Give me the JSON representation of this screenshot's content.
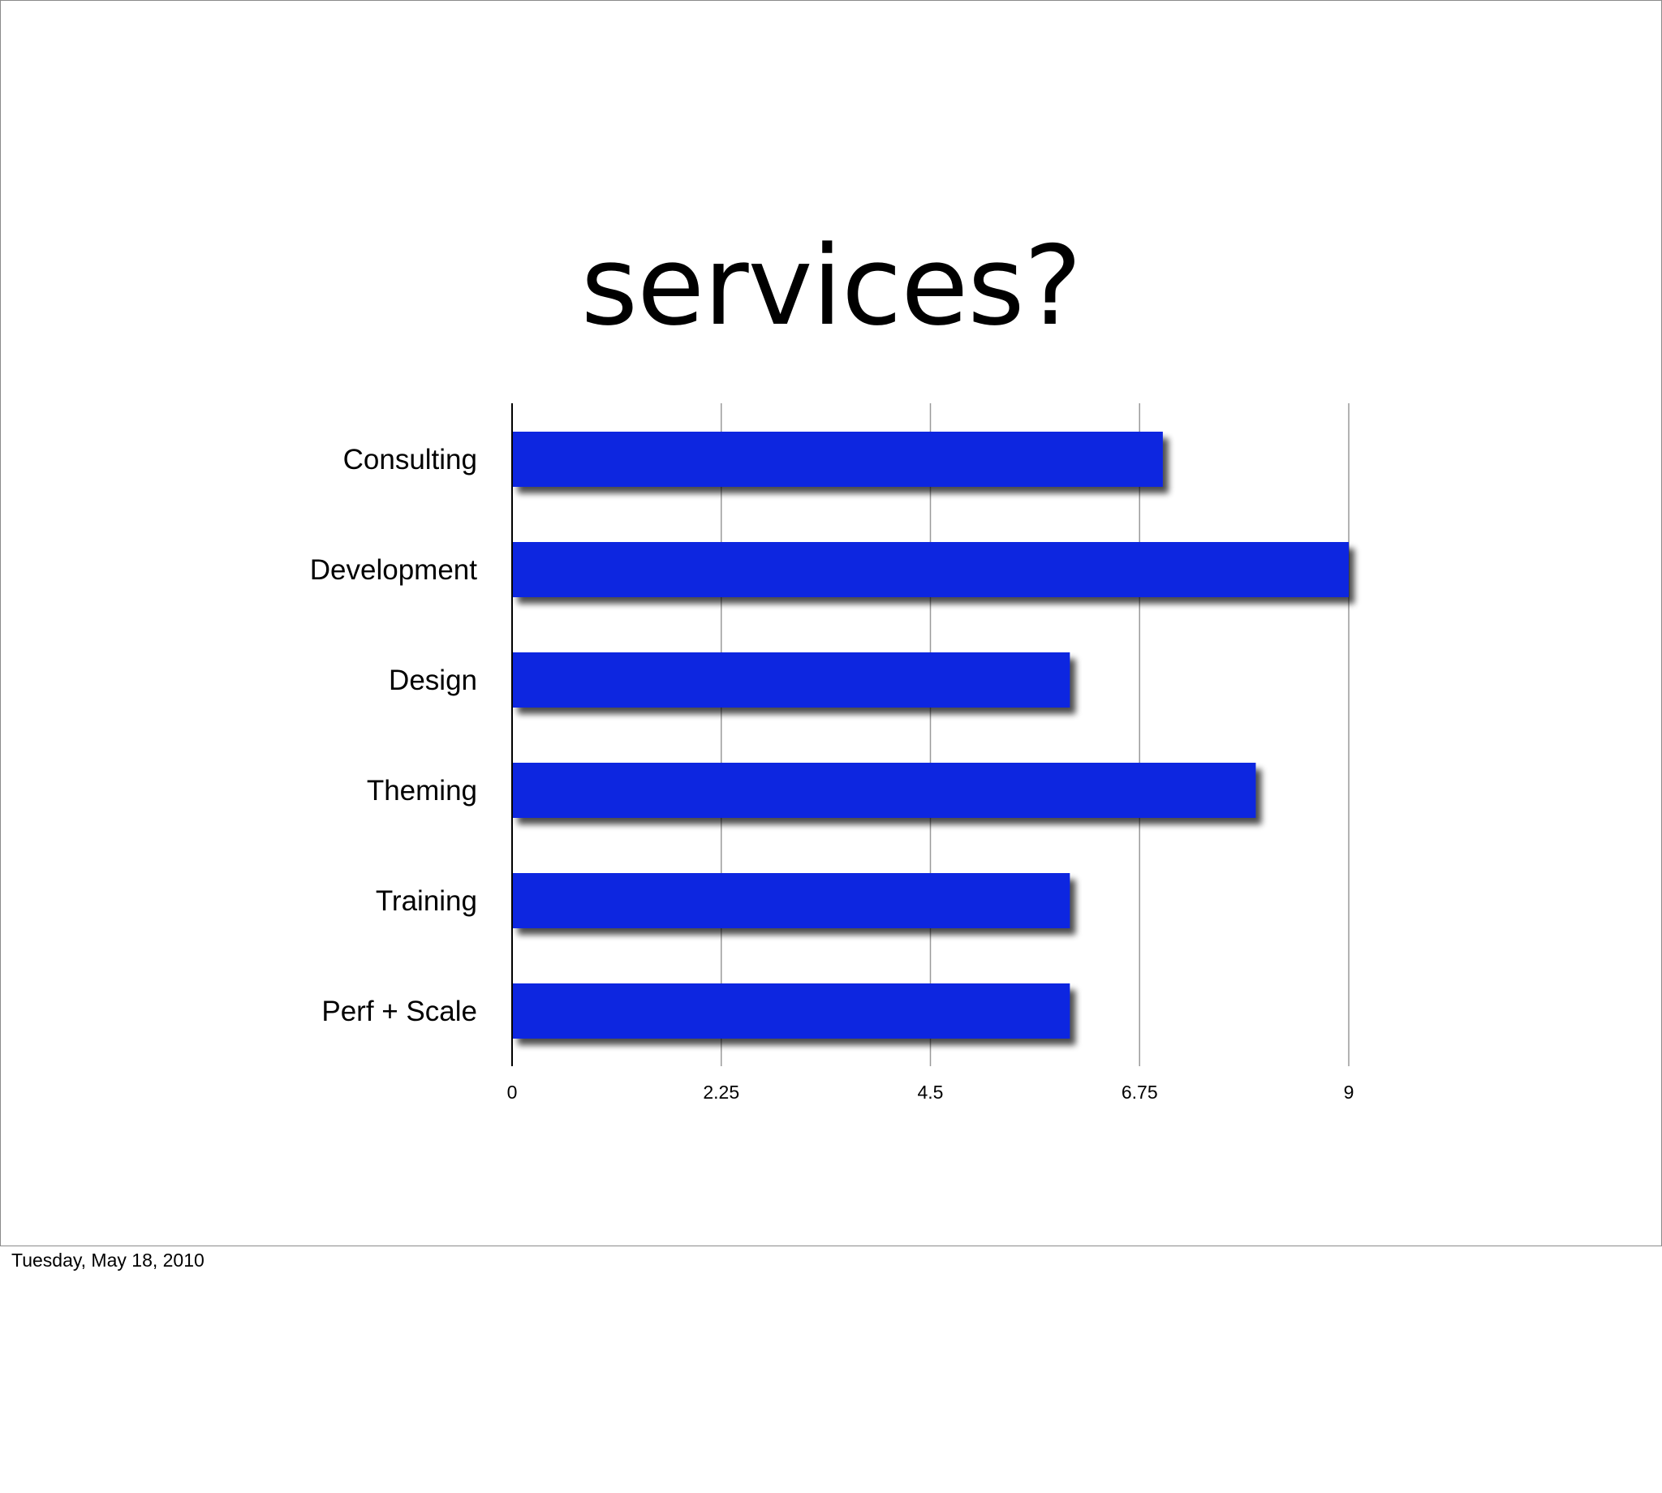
{
  "slide": {
    "title": "services?"
  },
  "footer": {
    "date": "Tuesday, May 18, 2010"
  },
  "colors": {
    "bar": "#0a28e0",
    "gridline": "#9a9a9a",
    "axis": "#000000"
  },
  "chart_data": {
    "type": "bar",
    "orientation": "horizontal",
    "categories": [
      "Consulting",
      "Development",
      "Design",
      "Theming",
      "Training",
      "Perf + Scale"
    ],
    "values": [
      7,
      9,
      6,
      8,
      6,
      6
    ],
    "xlim": [
      0,
      9
    ],
    "xticks": [
      "0",
      "2.25",
      "4.5",
      "6.75",
      "9"
    ],
    "grid": true,
    "legend": "none"
  }
}
